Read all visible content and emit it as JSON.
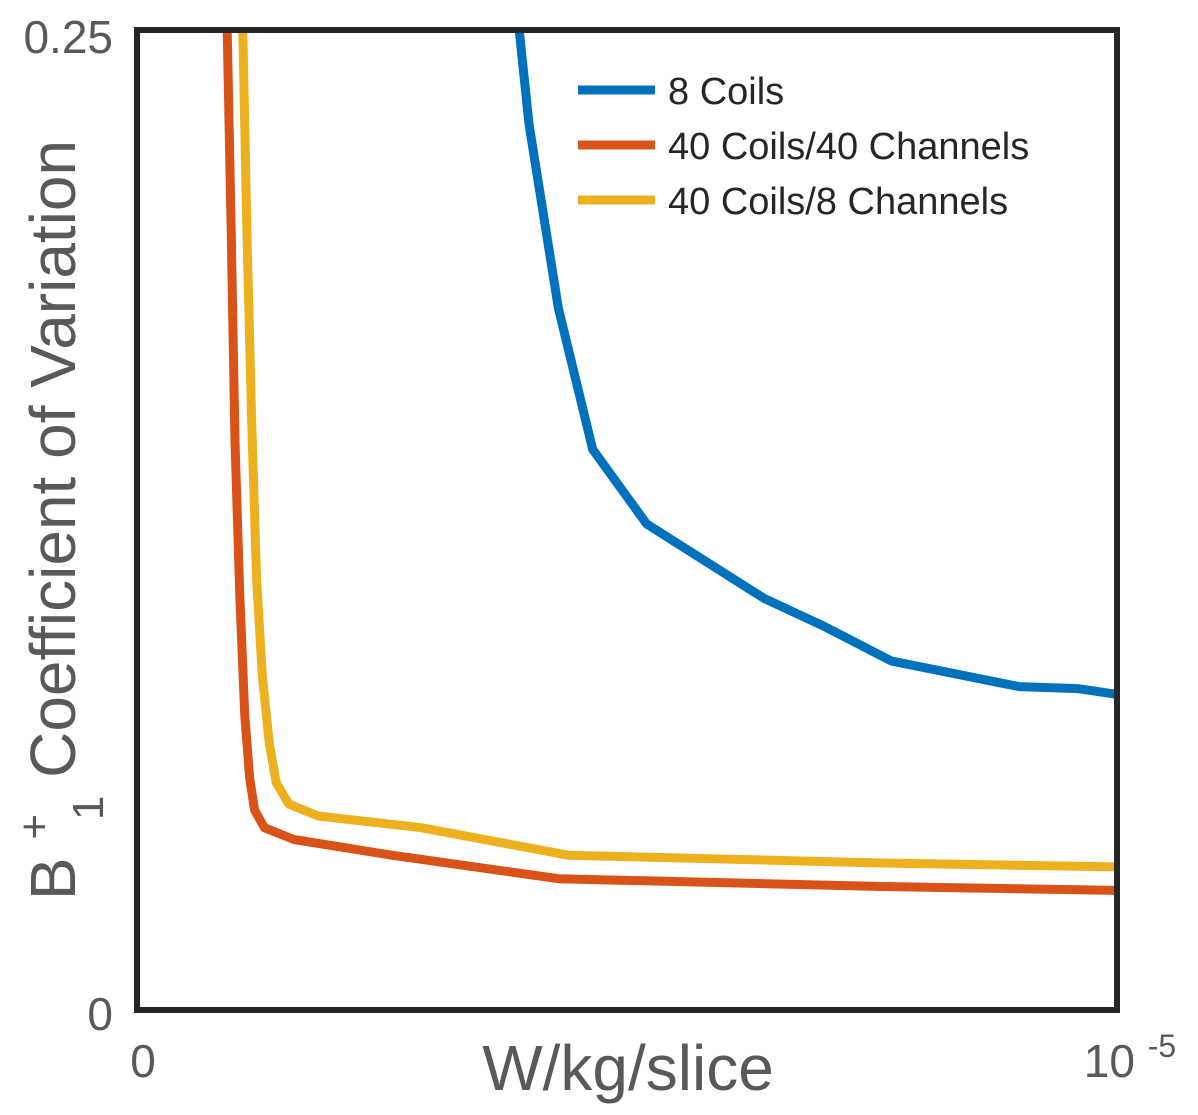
{
  "chart_data": {
    "type": "line",
    "title": "",
    "xlabel": "W/kg/slice",
    "ylabel": {
      "base": "B",
      "superscript": "+",
      "subscript": "1",
      "rest": " Coefficient of Variation"
    },
    "x_tick_labels": {
      "min": "0",
      "max_base": "10",
      "max_exponent": "-5"
    },
    "y_tick_labels": [
      "0",
      "0.25"
    ],
    "xlim": [
      0,
      1e-05
    ],
    "ylim": [
      0,
      0.25
    ],
    "grid": false,
    "legend_position": "top-right",
    "series": [
      {
        "name": "8 Coils",
        "color": "#0072BD",
        "x": [
          3.9e-06,
          4e-06,
          4.3e-06,
          4.65e-06,
          5.2e-06,
          6.4e-06,
          7e-06,
          7.7e-06,
          8.4e-06,
          8.8e-06,
          9e-06,
          9.6e-06,
          1e-05
        ],
        "y": [
          0.25,
          0.226,
          0.179,
          0.143,
          0.124,
          0.105,
          0.098,
          0.089,
          0.0855,
          0.0835,
          0.0825,
          0.082,
          0.0805
        ]
      },
      {
        "name": "40 Coils/40 Channels",
        "color": "#D95319",
        "x": [
          9.2e-07,
          9.6e-07,
          1e-06,
          1.05e-06,
          1.1e-06,
          1.15e-06,
          1.2e-06,
          1.3e-06,
          1.6e-06,
          2.6e-06,
          4.3e-06,
          7.6e-06,
          1e-05
        ],
        "y": [
          0.25,
          0.2,
          0.145,
          0.105,
          0.075,
          0.059,
          0.051,
          0.0465,
          0.0435,
          0.0395,
          0.0335,
          0.0315,
          0.0305
        ]
      },
      {
        "name": "40 Coils/8 Channels",
        "color": "#EDB120",
        "x": [
          1.08e-06,
          1.12e-06,
          1.17e-06,
          1.22e-06,
          1.28e-06,
          1.35e-06,
          1.42e-06,
          1.55e-06,
          1.85e-06,
          2.9e-06,
          4.4e-06,
          7.6e-06,
          1e-05
        ],
        "y": [
          0.25,
          0.2,
          0.15,
          0.11,
          0.085,
          0.068,
          0.058,
          0.0525,
          0.0495,
          0.0465,
          0.0395,
          0.0375,
          0.0365
        ]
      }
    ]
  }
}
